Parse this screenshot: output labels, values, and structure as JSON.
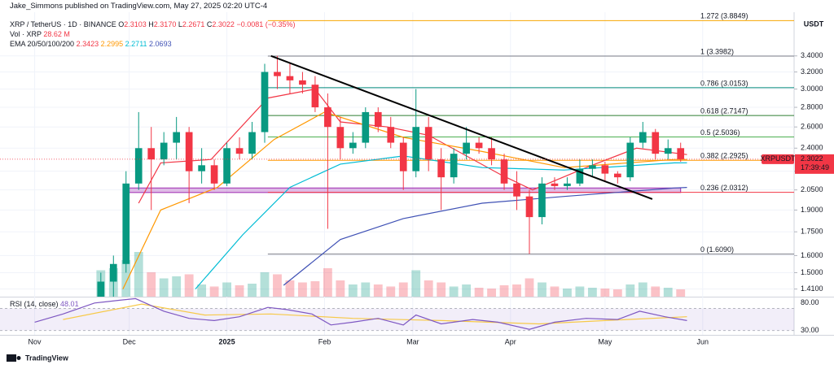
{
  "header": {
    "author": "Jake_Simmons published on TradingView.com, May 27, 2025 02:20 UTC-4",
    "symbol": "XRP / TetherUS · 1D · BINANCE",
    "ohlc": [
      {
        "label": "O",
        "value": "2.3103"
      },
      {
        "label": "H",
        "value": "2.3170"
      },
      {
        "label": "L",
        "value": "2.2671"
      },
      {
        "label": "C",
        "value": "2.3022"
      }
    ],
    "change": "−0.0081 (−0.35%)",
    "volume_title": "Vol · XRP",
    "volume_value": "28.62 M",
    "ema_title": "EMA 20/50/100/200",
    "brand": "TradingView"
  },
  "chart_data": {
    "type": "candlestick",
    "log_scale": true,
    "grid": true,
    "axis_unit": "USDT",
    "up_color": "#089981",
    "down_color": "#f23645",
    "x": [
      "2024-11-22",
      "2024-11-26",
      "2024-11-30",
      "2024-12-04",
      "2024-12-08",
      "2024-12-12",
      "2024-12-16",
      "2024-12-20",
      "2024-12-24",
      "2024-12-28",
      "2025-01-01",
      "2025-01-05",
      "2025-01-09",
      "2025-01-13",
      "2025-01-17",
      "2025-01-21",
      "2025-01-25",
      "2025-01-29",
      "2025-02-02",
      "2025-02-06",
      "2025-02-10",
      "2025-02-14",
      "2025-02-18",
      "2025-02-22",
      "2025-02-26",
      "2025-03-02",
      "2025-03-06",
      "2025-03-10",
      "2025-03-14",
      "2025-03-18",
      "2025-03-22",
      "2025-03-26",
      "2025-03-30",
      "2025-04-03",
      "2025-04-07",
      "2025-04-11",
      "2025-04-15",
      "2025-04-19",
      "2025-04-23",
      "2025-04-27",
      "2025-05-01",
      "2025-05-05",
      "2025-05-09",
      "2025-05-13",
      "2025-05-17",
      "2025-05-21",
      "2025-05-25"
    ],
    "open": [
      1.3,
      1.45,
      1.55,
      2.1,
      2.4,
      2.3,
      2.45,
      2.55,
      2.2,
      2.25,
      2.1,
      2.4,
      2.35,
      2.55,
      3.2,
      3.15,
      3.1,
      3.05,
      2.8,
      2.6,
      2.4,
      2.45,
      2.75,
      2.6,
      2.45,
      2.2,
      2.6,
      2.3,
      2.15,
      2.35,
      2.45,
      2.4,
      2.3,
      2.1,
      2.0,
      1.85,
      2.1,
      2.08,
      2.1,
      2.22,
      2.25,
      2.18,
      2.15,
      2.45,
      2.55,
      2.35,
      2.4
    ],
    "high": [
      1.5,
      1.6,
      2.2,
      2.75,
      2.6,
      2.55,
      2.7,
      2.6,
      2.4,
      2.3,
      2.45,
      2.5,
      2.65,
      3.3,
      3.4,
      3.3,
      3.2,
      3.15,
      2.95,
      2.7,
      2.55,
      2.8,
      2.8,
      2.7,
      2.5,
      3.0,
      2.7,
      2.4,
      2.4,
      2.6,
      2.5,
      2.5,
      2.35,
      2.2,
      2.05,
      2.15,
      2.15,
      2.15,
      2.3,
      2.3,
      2.28,
      2.2,
      2.5,
      2.65,
      2.58,
      2.48,
      2.45
    ],
    "low": [
      1.25,
      1.35,
      1.5,
      2.05,
      1.9,
      2.25,
      2.3,
      1.95,
      2.1,
      2.05,
      2.08,
      2.3,
      2.3,
      2.45,
      3.0,
      2.95,
      2.95,
      2.75,
      1.77,
      2.3,
      2.35,
      2.4,
      2.55,
      2.4,
      2.05,
      2.15,
      2.2,
      1.9,
      2.1,
      2.3,
      2.35,
      2.25,
      2.05,
      1.9,
      1.61,
      1.8,
      2.05,
      2.05,
      2.08,
      2.15,
      2.12,
      2.1,
      2.12,
      2.4,
      2.3,
      2.3,
      2.28
    ],
    "close": [
      1.45,
      1.55,
      2.1,
      2.4,
      2.3,
      2.45,
      2.55,
      2.2,
      2.25,
      2.1,
      2.4,
      2.35,
      2.55,
      3.2,
      3.15,
      3.1,
      3.05,
      2.8,
      2.6,
      2.4,
      2.45,
      2.75,
      2.6,
      2.45,
      2.2,
      2.6,
      2.3,
      2.15,
      2.35,
      2.45,
      2.4,
      2.3,
      2.1,
      2.0,
      1.85,
      2.1,
      2.08,
      2.1,
      2.22,
      2.25,
      2.18,
      2.15,
      2.45,
      2.55,
      2.35,
      2.4,
      2.3022
    ],
    "volume": [
      650,
      700,
      900,
      1100,
      600,
      450,
      500,
      550,
      300,
      250,
      350,
      280,
      320,
      600,
      550,
      400,
      350,
      380,
      700,
      400,
      300,
      350,
      300,
      250,
      350,
      650,
      400,
      350,
      250,
      300,
      220,
      200,
      280,
      300,
      450,
      350,
      250,
      200,
      250,
      220,
      200,
      180,
      300,
      350,
      250,
      220,
      180
    ],
    "y2lim": [
      0,
      1400
    ],
    "xlim": [
      "2024-10-21",
      "2025-06-30"
    ],
    "xticks": [
      {
        "value": "2024-11-01",
        "label": "Nov"
      },
      {
        "value": "2024-12-01",
        "label": "Dec"
      },
      {
        "value": "2025-01-01",
        "label": "2025"
      },
      {
        "value": "2025-02-01",
        "label": "Feb"
      },
      {
        "value": "2025-03-01",
        "label": "Mar"
      },
      {
        "value": "2025-04-01",
        "label": "Apr"
      },
      {
        "value": "2025-05-01",
        "label": "May"
      },
      {
        "value": "2025-06-01",
        "label": "Jun"
      }
    ],
    "ylim": [
      1.37,
      4.01
    ],
    "yticks": [
      {
        "value": 3.4,
        "label": "3.4000"
      },
      {
        "value": 3.2,
        "label": "3.2000"
      },
      {
        "value": 3.0,
        "label": "3.0000"
      },
      {
        "value": 2.8,
        "label": "2.8000"
      },
      {
        "value": 2.6,
        "label": "2.6000"
      },
      {
        "value": 2.4,
        "label": "2.4000"
      },
      {
        "value": 2.2,
        "label": "2.2000"
      },
      {
        "value": 2.05,
        "label": "2.0500"
      },
      {
        "value": 1.9,
        "label": "1.9000"
      },
      {
        "value": 1.75,
        "label": "1.7500"
      },
      {
        "value": 1.6,
        "label": "1.6000"
      },
      {
        "value": 1.5,
        "label": "1.5000"
      },
      {
        "value": 1.41,
        "label": "1.4100"
      }
    ],
    "indicators": [
      {
        "name": "EMA 20",
        "color": "#f23645",
        "legend_value": 2.3423,
        "x": [
          "2024-12-04",
          "2024-12-11",
          "2024-12-27",
          "2025-01-14",
          "2025-01-29",
          "2025-02-06",
          "2025-02-21",
          "2025-03-06",
          "2025-03-29",
          "2025-04-08",
          "2025-04-25",
          "2025-05-11",
          "2025-05-27"
        ],
        "values": [
          1.95,
          2.27,
          2.3,
          2.9,
          3.0,
          2.65,
          2.6,
          2.52,
          2.17,
          2.05,
          2.23,
          2.4,
          2.3423
        ]
      },
      {
        "name": "EMA 50",
        "color": "#ff9800",
        "legend_value": 2.2995,
        "x": [
          "2024-11-29",
          "2024-12-11",
          "2024-12-29",
          "2025-01-16",
          "2025-02-01",
          "2025-02-26",
          "2025-03-23",
          "2025-04-18",
          "2025-05-23",
          "2025-05-27"
        ],
        "values": [
          1.41,
          1.9,
          2.07,
          2.48,
          2.75,
          2.5,
          2.37,
          2.23,
          2.3,
          2.2995
        ]
      },
      {
        "name": "EMA 100",
        "color": "#00bcd4",
        "legend_value": 2.2711,
        "x": [
          "2024-12-22",
          "2025-01-06",
          "2025-01-21",
          "2025-02-06",
          "2025-02-26",
          "2025-03-23",
          "2025-04-18",
          "2025-05-23",
          "2025-05-27"
        ],
        "values": [
          1.41,
          1.73,
          2.07,
          2.26,
          2.33,
          2.23,
          2.21,
          2.27,
          2.2711
        ]
      },
      {
        "name": "EMA 200",
        "color": "#3f51b5",
        "legend_value": 2.0693,
        "x": [
          "2025-01-19",
          "2025-02-06",
          "2025-02-26",
          "2025-03-23",
          "2025-04-18",
          "2025-05-23",
          "2025-05-27"
        ],
        "values": [
          1.43,
          1.7,
          1.84,
          1.95,
          2.0,
          2.065,
          2.0693
        ]
      }
    ],
    "fib_levels": [
      {
        "value": 3.8849,
        "label": "1.272 (3.8849)",
        "color": "#f7a600"
      },
      {
        "value": 3.3982,
        "label": "1 (3.3982)",
        "color": "#787b86"
      },
      {
        "value": 3.0153,
        "label": "0.786 (3.0153)",
        "color": "#00897b"
      },
      {
        "value": 2.7147,
        "label": "0.618 (2.7147)",
        "color": "#2e7d32"
      },
      {
        "value": 2.5036,
        "label": "0.5 (2.5036)",
        "color": "#4caf50"
      },
      {
        "value": 2.2925,
        "label": "0.382 (2.2925)",
        "color": "#ff9800"
      },
      {
        "value": 2.0312,
        "label": "0.236 (2.0312)",
        "color": "#f23645"
      },
      {
        "value": 1.609,
        "label": "0 (1.6090)",
        "color": "#787b86"
      }
    ],
    "fib_start": "2025-01-14",
    "trendline": {
      "x": [
        "2025-01-15",
        "2025-05-16"
      ],
      "values": [
        3.4,
        1.98
      ],
      "color": "#000000"
    },
    "zone": {
      "x": [
        "2024-12-01",
        "2025-05-25"
      ],
      "values": [
        2.03,
        2.065
      ],
      "color": "#9c27b0"
    },
    "price_tag": {
      "symbol": "XRPUSDT",
      "value": 2.3022,
      "countdown": "17:39:49",
      "color": "#f23645"
    },
    "rsi": {
      "title": "RSI (14, close)",
      "legend_value": 48.01,
      "color": "#7e57c2",
      "ma_color": "#f7c948",
      "band": [
        30,
        70
      ],
      "ylim": [
        22,
        90
      ],
      "yticks": [
        {
          "value": 80,
          "label": "80.00"
        },
        {
          "value": 30,
          "label": "30.00"
        }
      ],
      "x": [
        "2024-11-01",
        "2024-11-10",
        "2024-11-20",
        "2024-11-28",
        "2024-12-03",
        "2024-12-12",
        "2024-12-20",
        "2024-12-28",
        "2025-01-05",
        "2025-01-14",
        "2025-01-20",
        "2025-01-28",
        "2025-02-03",
        "2025-02-10",
        "2025-02-18",
        "2025-02-26",
        "2025-03-02",
        "2025-03-10",
        "2025-03-20",
        "2025-03-28",
        "2025-04-07",
        "2025-04-15",
        "2025-04-25",
        "2025-05-05",
        "2025-05-12",
        "2025-05-20",
        "2025-05-27"
      ],
      "values": [
        45,
        60,
        80,
        85,
        88,
        65,
        52,
        48,
        55,
        72,
        68,
        60,
        40,
        45,
        52,
        40,
        58,
        42,
        50,
        45,
        32,
        45,
        52,
        50,
        65,
        55,
        48.01
      ],
      "ma_x": [
        "2024-11-10",
        "2024-12-05",
        "2024-12-25",
        "2025-01-15",
        "2025-02-10",
        "2025-03-10",
        "2025-04-10",
        "2025-05-01",
        "2025-05-27"
      ],
      "ma_values": [
        50,
        78,
        58,
        60,
        52,
        48,
        42,
        48,
        55
      ]
    }
  }
}
